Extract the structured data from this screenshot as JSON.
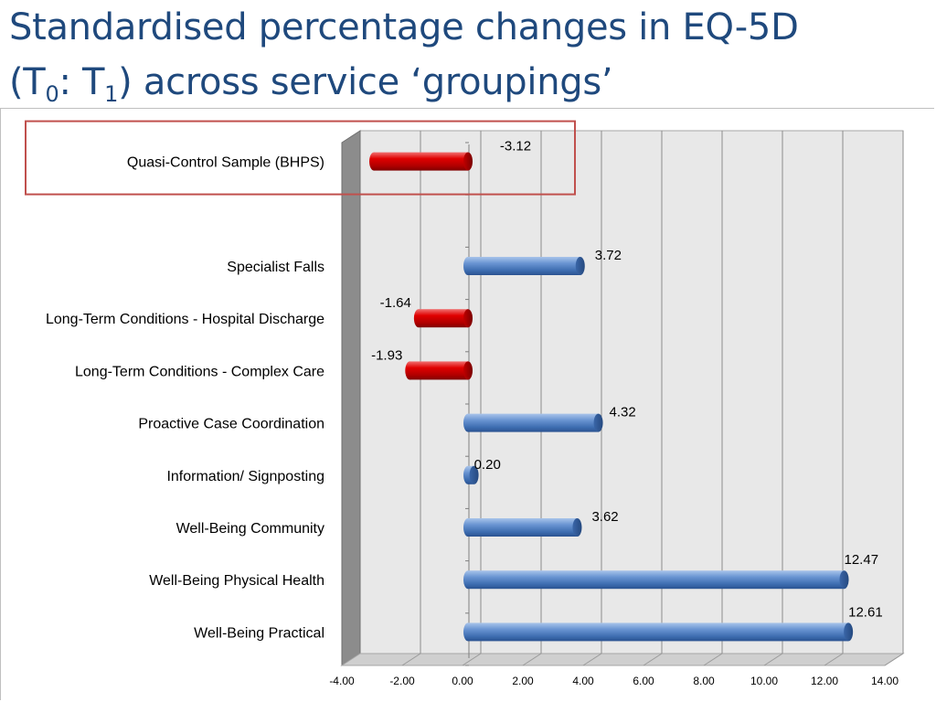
{
  "slide": {
    "title_line1": "Standardised percentage changes in EQ-5D",
    "title_line2_prefix": "(T",
    "title_sub0": "0",
    "title_mid": ": T",
    "title_sub1": "1",
    "title_suffix": ") across service ‘groupings’"
  },
  "colors": {
    "title": "#1f497d",
    "positive_bar": "#4f81bd",
    "negative_bar": "#d00000",
    "highlight_box": "#c0504d",
    "plot_bg": "#e8e8e8",
    "wall_side": "#8c8c8c",
    "gridline": "#8c8c8c"
  },
  "chart_data": {
    "type": "bar",
    "orientation": "horizontal",
    "style": "3d-cylinder",
    "categories": [
      "Quasi-Control Sample (BHPS)",
      "",
      "Specialist Falls",
      "Long-Term Conditions - Hospital Discharge",
      "Long-Term Conditions - Complex Care",
      "Proactive Case Coordination",
      "Information/ Signposting",
      "Well-Being Community",
      "Well-Being Physical Health",
      "Well-Being Practical"
    ],
    "values": [
      -3.12,
      null,
      3.72,
      -1.64,
      -1.93,
      4.32,
      0.2,
      3.62,
      12.47,
      12.61
    ],
    "value_labels": [
      "-3.12",
      "",
      "3.72",
      "-1.64",
      "-1.93",
      "4.32",
      "0.20",
      "3.62",
      "12.47",
      "12.61"
    ],
    "x_ticks": [
      "-4.00",
      "-2.00",
      "0.00",
      "2.00",
      "4.00",
      "6.00",
      "8.00",
      "10.00",
      "12.00",
      "14.00"
    ],
    "xlim": [
      -4,
      14
    ],
    "grid": true,
    "legend": "none",
    "highlighted_category": "Quasi-Control Sample (BHPS)"
  }
}
